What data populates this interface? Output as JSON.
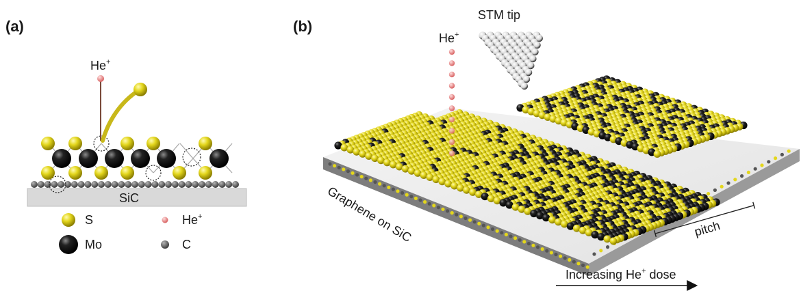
{
  "panel_a": {
    "label": "(a)",
    "ion_label": "He",
    "ion_charge": "+",
    "substrate_label": "SiC",
    "colors": {
      "sulfur": "#e3d61c",
      "molybdenum": "#111111",
      "carbon": "#6a6a6a",
      "helium": "#f08f8f"
    },
    "legend": [
      {
        "symbol": "S",
        "species": "sulfur",
        "charge": ""
      },
      {
        "symbol": "He",
        "species": "helium",
        "charge": "+"
      },
      {
        "symbol": "Mo",
        "species": "molybdenum",
        "charge": ""
      },
      {
        "symbol": "C",
        "species": "carbon",
        "charge": ""
      }
    ]
  },
  "panel_b": {
    "label": "(b)",
    "tip_label": "STM tip",
    "ion_label": "He",
    "ion_charge": "+",
    "substrate_label": "Graphene on SiC",
    "pitch_label": "pitch",
    "dose_label_pre": "Increasing He",
    "dose_label_sup": "+",
    "dose_label_post": " dose"
  }
}
